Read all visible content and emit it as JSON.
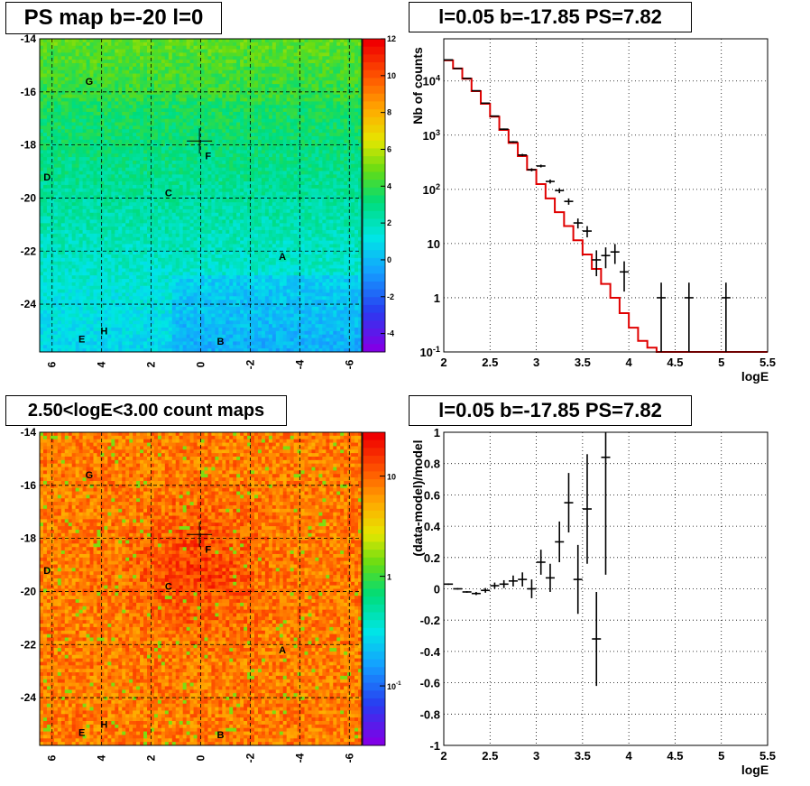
{
  "panels": {
    "ps_map": {
      "title": "PS map b=-20 l=0",
      "y_ticks": [
        "-14",
        "-16",
        "-18",
        "-20",
        "-22",
        "-24"
      ],
      "x_ticks": [
        "6",
        "4",
        "2",
        "0",
        "-2",
        "-4",
        "-6"
      ],
      "colorbar_ticks": [
        "12",
        "10",
        "8",
        "6",
        "4",
        "2",
        "0",
        "-2",
        "-4"
      ],
      "sources": [
        "G",
        "D",
        "F",
        "C",
        "A",
        "H",
        "E",
        "B"
      ]
    },
    "spectrum": {
      "title": "l=0.05 b=-17.85 PS=7.82",
      "ylabel": "Nb of counts",
      "xlabel": "logE",
      "x_ticks": [
        "2",
        "2.5",
        "3",
        "3.5",
        "4",
        "4.5",
        "5",
        "5.5"
      ],
      "y_ticks": [
        "10^4",
        "10^3",
        "10^2",
        "10",
        "1",
        "10^-1"
      ]
    },
    "count_map": {
      "title": "2.50<logE<3.00 count maps",
      "y_ticks": [
        "-14",
        "-16",
        "-18",
        "-20",
        "-22",
        "-24"
      ],
      "x_ticks": [
        "6",
        "4",
        "2",
        "0",
        "-2",
        "-4",
        "-6"
      ],
      "colorbar_ticks": [
        "10",
        "1",
        "10^-1"
      ],
      "sources": [
        "G",
        "F",
        "D",
        "C",
        "A",
        "E",
        "H",
        "B"
      ]
    },
    "residual": {
      "title": "l=0.05 b=-17.85 PS=7.82",
      "ylabel": "(data-model)/model",
      "xlabel": "logE",
      "x_ticks": [
        "2",
        "2.5",
        "3",
        "3.5",
        "4",
        "4.5",
        "5",
        "5.5"
      ],
      "y_ticks": [
        "1",
        "0.8",
        "0.6",
        "0.4",
        "0.2",
        "0",
        "-0.2",
        "-0.4",
        "-0.6",
        "-0.8",
        "-1"
      ]
    }
  },
  "chart_data": [
    {
      "type": "heatmap",
      "title": "PS map b=-20 l=0",
      "x_range": [
        6.5,
        -6.5
      ],
      "y_range": [
        -25.8,
        -14
      ],
      "colorbar_range": [
        -5,
        12
      ],
      "markers": [
        {
          "label": "G",
          "l": 4.5,
          "b": -15.6
        },
        {
          "label": "D",
          "l": 6.2,
          "b": -19.2
        },
        {
          "label": "F",
          "l": -0.3,
          "b": -18.4
        },
        {
          "label": "C",
          "l": 1.3,
          "b": -19.8
        },
        {
          "label": "A",
          "l": -3.3,
          "b": -22.2
        },
        {
          "label": "H",
          "l": 3.9,
          "b": -25.0
        },
        {
          "label": "E",
          "l": 4.8,
          "b": -25.3
        },
        {
          "label": "B",
          "l": -0.8,
          "b": -25.4
        }
      ],
      "crosshair": {
        "l": 0.05,
        "b": -17.85
      }
    },
    {
      "type": "line",
      "title": "l=0.05 b=-17.85 PS=7.82",
      "xlabel": "logE",
      "ylabel": "Nb of counts",
      "xlim": [
        2,
        5.5
      ],
      "ylim": [
        0.1,
        60000
      ],
      "yscale": "log",
      "series": [
        {
          "kind": "histogram",
          "bin_edges": [
            2.0,
            2.1,
            2.2,
            2.3,
            2.4,
            2.5,
            2.6,
            2.7,
            2.8,
            2.9,
            3.0,
            3.1,
            3.2,
            3.3,
            3.4,
            3.5,
            3.6,
            3.7,
            3.8,
            3.9,
            4.0,
            4.1,
            4.2,
            4.3,
            4.4,
            4.5,
            5.5
          ],
          "values": [
            24000,
            17000,
            11000,
            6500,
            3800,
            2200,
            1250,
            720,
            410,
            230,
            125,
            68,
            38,
            21,
            11.5,
            6.3,
            3.4,
            1.8,
            1.0,
            0.52,
            0.28,
            0.16,
            0.12,
            0.1,
            0.1,
            0.1
          ]
        },
        {
          "kind": "points",
          "points": [
            {
              "x": 2.05,
              "y": 24500,
              "e": 150
            },
            {
              "x": 2.15,
              "y": 17000,
              "e": 130
            },
            {
              "x": 2.25,
              "y": 11200,
              "e": 100
            },
            {
              "x": 2.35,
              "y": 6600,
              "e": 80
            },
            {
              "x": 2.45,
              "y": 3900,
              "e": 60
            },
            {
              "x": 2.55,
              "y": 2250,
              "e": 47
            },
            {
              "x": 2.65,
              "y": 1290,
              "e": 36
            },
            {
              "x": 2.75,
              "y": 750,
              "e": 27
            },
            {
              "x": 2.85,
              "y": 430,
              "e": 21
            },
            {
              "x": 2.95,
              "y": 230,
              "e": 15
            },
            {
              "x": 3.05,
              "y": 270,
              "e": 16
            },
            {
              "x": 3.15,
              "y": 140,
              "e": 12
            },
            {
              "x": 3.25,
              "y": 95,
              "e": 10
            },
            {
              "x": 3.35,
              "y": 60,
              "e": 8
            },
            {
              "x": 3.45,
              "y": 24,
              "e": 5
            },
            {
              "x": 3.55,
              "y": 17,
              "e": 4
            },
            {
              "x": 3.65,
              "y": 5,
              "e": 2.5
            },
            {
              "x": 3.75,
              "y": 6,
              "e": 2.5
            },
            {
              "x": 3.85,
              "y": 7,
              "e": 2.8
            },
            {
              "x": 3.95,
              "y": 3,
              "e": 1.7
            },
            {
              "x": 4.35,
              "y": 1,
              "e": 0.9
            },
            {
              "x": 4.65,
              "y": 1,
              "e": 0.9
            },
            {
              "x": 5.05,
              "y": 1,
              "e": 0.9
            }
          ]
        }
      ]
    },
    {
      "type": "heatmap",
      "title": "2.50<logE<3.00 count maps",
      "x_range": [
        6.5,
        -6.5
      ],
      "y_range": [
        -25.8,
        -14
      ],
      "colorbar_scale": "log",
      "markers": [
        {
          "label": "G",
          "l": 4.5,
          "b": -15.6
        },
        {
          "label": "F",
          "l": -0.3,
          "b": -18.4
        },
        {
          "label": "D",
          "l": 6.2,
          "b": -19.2
        },
        {
          "label": "C",
          "l": 1.3,
          "b": -19.8
        },
        {
          "label": "A",
          "l": -3.3,
          "b": -22.2
        },
        {
          "label": "E",
          "l": 4.8,
          "b": -25.3
        },
        {
          "label": "H",
          "l": 3.9,
          "b": -25.0
        },
        {
          "label": "B",
          "l": -0.8,
          "b": -25.4
        }
      ],
      "crosshair": {
        "l": 0.05,
        "b": -17.85
      }
    },
    {
      "type": "scatter",
      "title": "l=0.05 b=-17.85 PS=7.82",
      "xlabel": "logE",
      "ylabel": "(data-model)/model",
      "xlim": [
        2,
        5.5
      ],
      "ylim": [
        -1,
        1
      ],
      "points": [
        {
          "x": 2.05,
          "y": 0.03,
          "e": 0.005
        },
        {
          "x": 2.15,
          "y": 0.0,
          "e": 0.005
        },
        {
          "x": 2.25,
          "y": -0.02,
          "e": 0.005
        },
        {
          "x": 2.35,
          "y": -0.03,
          "e": 0.01
        },
        {
          "x": 2.45,
          "y": -0.01,
          "e": 0.015
        },
        {
          "x": 2.55,
          "y": 0.02,
          "e": 0.02
        },
        {
          "x": 2.65,
          "y": 0.03,
          "e": 0.025
        },
        {
          "x": 2.75,
          "y": 0.05,
          "e": 0.035
        },
        {
          "x": 2.85,
          "y": 0.06,
          "e": 0.045
        },
        {
          "x": 2.95,
          "y": 0.0,
          "e": 0.06
        },
        {
          "x": 3.05,
          "y": 0.17,
          "e": 0.08
        },
        {
          "x": 3.15,
          "y": 0.07,
          "e": 0.09
        },
        {
          "x": 3.25,
          "y": 0.3,
          "e": 0.13
        },
        {
          "x": 3.35,
          "y": 0.55,
          "e": 0.19
        },
        {
          "x": 3.45,
          "y": 0.06,
          "e": 0.22
        },
        {
          "x": 3.55,
          "y": 0.51,
          "e": 0.35
        },
        {
          "x": 3.65,
          "y": -0.32,
          "e": 0.3
        },
        {
          "x": 3.75,
          "y": 0.84,
          "e": 0.75
        }
      ]
    }
  ]
}
